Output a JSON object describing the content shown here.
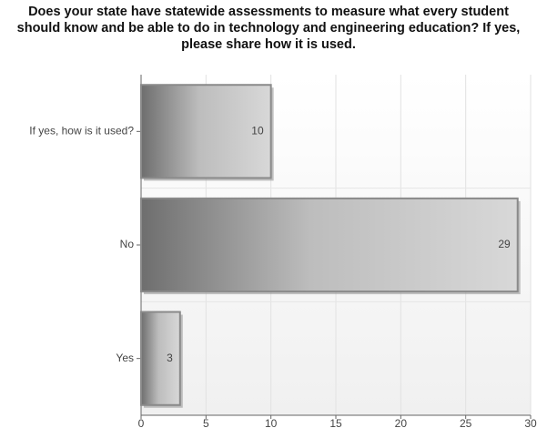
{
  "chart_data": {
    "type": "bar",
    "orientation": "horizontal",
    "title": "Does your state have statewide assessments to measure what every student should know and be able to do in technology and engineering education? If yes, please share how it is used.",
    "categories": [
      "If yes, how is it used?",
      "No",
      "Yes"
    ],
    "values": [
      10,
      29,
      3
    ],
    "xlim": [
      0,
      30
    ],
    "xticks": [
      0,
      5,
      10,
      15,
      20,
      25,
      30
    ],
    "grid": true,
    "color": "#b0b0b0"
  }
}
